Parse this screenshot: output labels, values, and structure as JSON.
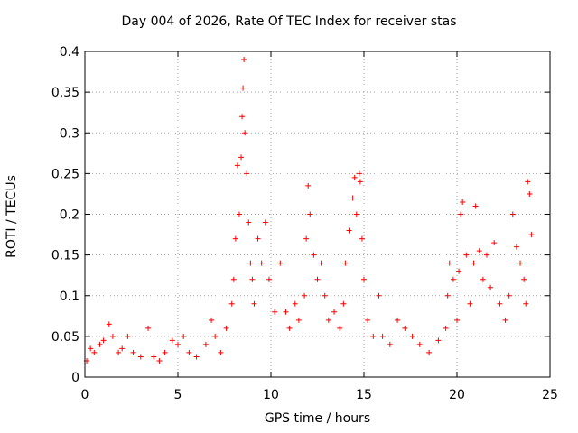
{
  "chart_data": {
    "type": "scatter",
    "title": "Day 004 of 2026, Rate Of TEC Index for receiver stas",
    "xlabel": "GPS time / hours",
    "ylabel": "ROTI / TECUs",
    "xlim": [
      0,
      25
    ],
    "ylim": [
      0,
      0.4
    ],
    "xticks": [
      0,
      5,
      10,
      15,
      20,
      25
    ],
    "yticks": [
      0,
      0.05,
      0.1,
      0.15,
      0.2,
      0.25,
      0.3,
      0.35,
      0.4
    ],
    "xtick_labels": [
      "0",
      "5",
      "10",
      "15",
      "20",
      "25"
    ],
    "ytick_labels": [
      "0",
      "0.05",
      "0.1",
      "0.15",
      "0.2",
      "0.25",
      "0.3",
      "0.35",
      "0.4"
    ],
    "grid": true,
    "marker": "+",
    "color": "#ff0000",
    "series": [
      {
        "points": [
          [
            0.1,
            0.02
          ],
          [
            0.3,
            0.035
          ],
          [
            0.5,
            0.03
          ],
          [
            0.8,
            0.04
          ],
          [
            1.0,
            0.045
          ],
          [
            1.3,
            0.065
          ],
          [
            1.5,
            0.05
          ],
          [
            1.8,
            0.03
          ],
          [
            2.0,
            0.035
          ],
          [
            2.3,
            0.05
          ],
          [
            2.6,
            0.03
          ],
          [
            3.0,
            0.025
          ],
          [
            3.4,
            0.06
          ],
          [
            3.7,
            0.025
          ],
          [
            4.0,
            0.02
          ],
          [
            4.3,
            0.03
          ],
          [
            4.7,
            0.045
          ],
          [
            5.0,
            0.04
          ],
          [
            5.3,
            0.05
          ],
          [
            5.6,
            0.03
          ],
          [
            6.0,
            0.025
          ],
          [
            6.5,
            0.04
          ],
          [
            6.8,
            0.07
          ],
          [
            7.0,
            0.05
          ],
          [
            7.3,
            0.03
          ],
          [
            7.6,
            0.06
          ],
          [
            7.9,
            0.09
          ],
          [
            8.0,
            0.12
          ],
          [
            8.1,
            0.17
          ],
          [
            8.2,
            0.26
          ],
          [
            8.3,
            0.2
          ],
          [
            8.4,
            0.27
          ],
          [
            8.45,
            0.32
          ],
          [
            8.5,
            0.355
          ],
          [
            8.55,
            0.39
          ],
          [
            8.6,
            0.3
          ],
          [
            8.7,
            0.25
          ],
          [
            8.8,
            0.19
          ],
          [
            8.9,
            0.14
          ],
          [
            9.0,
            0.12
          ],
          [
            9.1,
            0.09
          ],
          [
            9.3,
            0.17
          ],
          [
            9.5,
            0.14
          ],
          [
            9.7,
            0.19
          ],
          [
            9.9,
            0.12
          ],
          [
            10.2,
            0.08
          ],
          [
            10.5,
            0.14
          ],
          [
            10.8,
            0.08
          ],
          [
            11.0,
            0.06
          ],
          [
            11.3,
            0.09
          ],
          [
            11.5,
            0.07
          ],
          [
            11.8,
            0.1
          ],
          [
            11.9,
            0.17
          ],
          [
            12.0,
            0.235
          ],
          [
            12.1,
            0.2
          ],
          [
            12.3,
            0.15
          ],
          [
            12.5,
            0.12
          ],
          [
            12.7,
            0.14
          ],
          [
            12.9,
            0.1
          ],
          [
            13.1,
            0.07
          ],
          [
            13.4,
            0.08
          ],
          [
            13.7,
            0.06
          ],
          [
            13.9,
            0.09
          ],
          [
            14.0,
            0.14
          ],
          [
            14.2,
            0.18
          ],
          [
            14.4,
            0.22
          ],
          [
            14.5,
            0.245
          ],
          [
            14.6,
            0.2
          ],
          [
            14.75,
            0.25
          ],
          [
            14.8,
            0.24
          ],
          [
            14.9,
            0.17
          ],
          [
            15.0,
            0.12
          ],
          [
            15.2,
            0.07
          ],
          [
            15.5,
            0.05
          ],
          [
            15.8,
            0.1
          ],
          [
            16.0,
            0.05
          ],
          [
            16.4,
            0.04
          ],
          [
            16.8,
            0.07
          ],
          [
            17.2,
            0.06
          ],
          [
            17.6,
            0.05
          ],
          [
            18.0,
            0.04
          ],
          [
            18.5,
            0.03
          ],
          [
            19.0,
            0.045
          ],
          [
            19.4,
            0.06
          ],
          [
            19.5,
            0.1
          ],
          [
            19.6,
            0.14
          ],
          [
            19.8,
            0.12
          ],
          [
            20.0,
            0.07
          ],
          [
            20.1,
            0.13
          ],
          [
            20.2,
            0.2
          ],
          [
            20.3,
            0.215
          ],
          [
            20.5,
            0.15
          ],
          [
            20.7,
            0.09
          ],
          [
            20.9,
            0.14
          ],
          [
            21.0,
            0.21
          ],
          [
            21.2,
            0.155
          ],
          [
            21.4,
            0.12
          ],
          [
            21.6,
            0.15
          ],
          [
            21.8,
            0.11
          ],
          [
            22.0,
            0.165
          ],
          [
            22.3,
            0.09
          ],
          [
            22.6,
            0.07
          ],
          [
            22.8,
            0.1
          ],
          [
            23.0,
            0.2
          ],
          [
            23.2,
            0.16
          ],
          [
            23.4,
            0.14
          ],
          [
            23.6,
            0.12
          ],
          [
            23.7,
            0.09
          ],
          [
            23.8,
            0.24
          ],
          [
            23.9,
            0.225
          ],
          [
            24.0,
            0.175
          ]
        ]
      }
    ]
  }
}
